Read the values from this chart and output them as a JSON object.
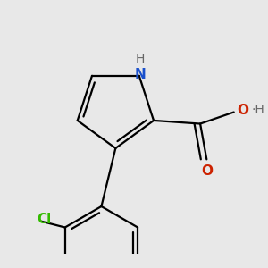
{
  "background_color": "#e8e8e8",
  "bond_color": "#000000",
  "line_width": 1.6,
  "atoms": {
    "N": {
      "color": "#1a50cc",
      "fontsize": 11
    },
    "O": {
      "color": "#cc2200",
      "fontsize": 11
    },
    "Cl": {
      "color": "#33bb00",
      "fontsize": 11
    },
    "H": {
      "color": "#666666",
      "fontsize": 10
    }
  },
  "figsize": [
    3.0,
    3.0
  ],
  "dpi": 100
}
